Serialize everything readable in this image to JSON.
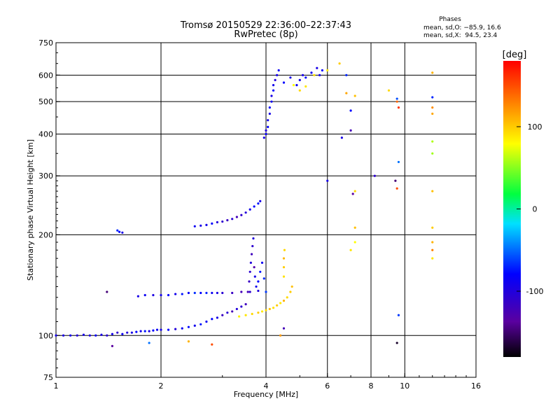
{
  "chart_data": {
    "type": "scatter",
    "title": "Tromsø 20150529 22:36:00–22:37:43",
    "subtitle": "RwPretec (8p)",
    "xlabel": "Frequency [MHz]",
    "ylabel": "Stationary phase Virtual Height [km]",
    "x_scale": "log",
    "y_scale": "log",
    "xlim": [
      1,
      16
    ],
    "ylim": [
      75,
      750
    ],
    "x_ticks": [
      1,
      2,
      4,
      6,
      8,
      10,
      16
    ],
    "y_ticks": [
      75,
      100,
      200,
      300,
      400,
      500,
      600,
      750
    ],
    "grid_x": [
      2,
      4,
      6,
      8,
      10
    ],
    "grid_y": [
      100,
      200,
      300,
      400,
      500,
      600
    ],
    "grid": true,
    "stats": {
      "heading": "Phases",
      "line_o": "mean, sd,O: −85.9, 16.6",
      "line_x": "mean, sd,X:  94.5, 23.4"
    },
    "colorbar": {
      "label": "[deg]",
      "min": -180,
      "max": 180,
      "ticks": [
        100,
        0,
        -100
      ],
      "placement": "right"
    },
    "series": [
      {
        "points": [
          [
            1.0,
            100,
            -110
          ],
          [
            1.05,
            100,
            -112
          ],
          [
            1.1,
            100,
            -108
          ],
          [
            1.15,
            100,
            -115
          ],
          [
            1.2,
            100.5,
            -110
          ],
          [
            1.25,
            100,
            -112
          ],
          [
            1.3,
            100,
            -105
          ],
          [
            1.35,
            100.5,
            -110
          ],
          [
            1.4,
            100,
            -118
          ],
          [
            1.45,
            101,
            -108
          ],
          [
            1.5,
            102,
            -120
          ],
          [
            1.55,
            101,
            -105
          ],
          [
            1.6,
            102,
            -115
          ],
          [
            1.65,
            102,
            -110
          ],
          [
            1.7,
            102.5,
            -100
          ],
          [
            1.75,
            103,
            -108
          ],
          [
            1.8,
            103,
            -95
          ],
          [
            1.85,
            103,
            -112
          ],
          [
            1.9,
            103.5,
            -100
          ],
          [
            1.95,
            104,
            -105
          ],
          [
            2.0,
            104,
            -110
          ],
          [
            2.1,
            104,
            -100
          ],
          [
            2.2,
            104.5,
            -115
          ],
          [
            2.3,
            105,
            -105
          ],
          [
            2.4,
            106,
            -98
          ],
          [
            2.5,
            107,
            -108
          ],
          [
            2.6,
            108,
            -95
          ],
          [
            2.7,
            110,
            -105
          ],
          [
            2.8,
            112,
            -100
          ],
          [
            2.9,
            113,
            -110
          ],
          [
            3.0,
            115,
            -125
          ],
          [
            3.1,
            117,
            -118
          ],
          [
            3.2,
            118,
            -130
          ],
          [
            3.3,
            120,
            -115
          ],
          [
            3.4,
            122,
            -120
          ],
          [
            3.5,
            124,
            -128
          ]
        ]
      },
      {
        "points": [
          [
            1.72,
            131,
            -110
          ],
          [
            1.8,
            132,
            -105
          ],
          [
            1.9,
            132,
            -112
          ],
          [
            2.0,
            132,
            -108
          ],
          [
            2.1,
            132,
            -100
          ],
          [
            2.2,
            133,
            -108
          ],
          [
            2.3,
            133,
            -95
          ],
          [
            2.4,
            134,
            -102
          ],
          [
            2.5,
            134,
            -88
          ],
          [
            2.6,
            134,
            -100
          ],
          [
            2.7,
            134,
            -92
          ],
          [
            2.8,
            134,
            -105
          ],
          [
            2.9,
            134,
            -110
          ],
          [
            3.0,
            134,
            -118
          ],
          [
            3.2,
            134,
            -125
          ],
          [
            3.4,
            135,
            -130
          ],
          [
            3.6,
            135,
            -120
          ],
          [
            3.8,
            136,
            -115
          ]
        ]
      },
      {
        "points": [
          [
            2.5,
            212,
            -105
          ],
          [
            2.6,
            213,
            -110
          ],
          [
            2.7,
            214,
            -108
          ],
          [
            2.8,
            216,
            -100
          ],
          [
            2.9,
            218,
            -115
          ],
          [
            3.0,
            219,
            -120
          ],
          [
            3.1,
            221,
            -125
          ],
          [
            3.2,
            223,
            -118
          ],
          [
            3.3,
            226,
            -130
          ],
          [
            3.4,
            229,
            -120
          ],
          [
            3.5,
            233,
            -115
          ],
          [
            3.6,
            238,
            -108
          ],
          [
            3.7,
            243,
            -100
          ],
          [
            3.8,
            248,
            -95
          ],
          [
            3.85,
            252,
            -110
          ]
        ]
      },
      {
        "points": [
          [
            1.5,
            206,
            -90
          ],
          [
            1.52,
            204,
            -100
          ],
          [
            1.55,
            203,
            -110
          ]
        ]
      },
      {
        "points": [
          [
            3.55,
            135,
            -130
          ],
          [
            3.58,
            145,
            -125
          ],
          [
            3.6,
            155,
            -120
          ],
          [
            3.62,
            165,
            -115
          ],
          [
            3.64,
            175,
            -128
          ],
          [
            3.66,
            185,
            -120
          ],
          [
            3.68,
            195,
            -115
          ],
          [
            3.7,
            160,
            -135
          ],
          [
            3.72,
            150,
            -110
          ],
          [
            3.75,
            140,
            -108
          ],
          [
            3.8,
            145,
            -100
          ],
          [
            3.85,
            155,
            -95
          ],
          [
            3.9,
            165,
            -105
          ],
          [
            3.95,
            148,
            -90
          ],
          [
            4.0,
            135,
            -85
          ]
        ]
      },
      {
        "points": [
          [
            3.35,
            114,
            85
          ],
          [
            3.5,
            115,
            90
          ],
          [
            3.65,
            116,
            95
          ],
          [
            3.8,
            117,
            100
          ],
          [
            3.9,
            118,
            88
          ],
          [
            4.0,
            119,
            95
          ],
          [
            4.1,
            120,
            105
          ],
          [
            4.2,
            121,
            92
          ],
          [
            4.3,
            123,
            100
          ],
          [
            4.4,
            125,
            88
          ],
          [
            4.5,
            127,
            110
          ],
          [
            4.6,
            130,
            95
          ],
          [
            4.7,
            135,
            100
          ],
          [
            4.75,
            140,
            105
          ],
          [
            4.5,
            150,
            92
          ],
          [
            4.5,
            160,
            100
          ],
          [
            4.5,
            170,
            108
          ],
          [
            4.52,
            180,
            95
          ]
        ]
      },
      {
        "points": [
          [
            3.95,
            390,
            -110
          ],
          [
            4.0,
            400,
            -105
          ],
          [
            4.0,
            410,
            -115
          ],
          [
            4.05,
            420,
            -100
          ],
          [
            4.05,
            440,
            -108
          ],
          [
            4.1,
            460,
            -110
          ],
          [
            4.1,
            480,
            -100
          ],
          [
            4.15,
            500,
            -105
          ],
          [
            4.15,
            520,
            -110
          ],
          [
            4.2,
            540,
            -100
          ],
          [
            4.2,
            560,
            -108
          ],
          [
            4.25,
            580,
            -115
          ],
          [
            4.3,
            600,
            -110
          ],
          [
            4.35,
            620,
            -105
          ],
          [
            4.5,
            570,
            -100
          ],
          [
            4.7,
            590,
            -110
          ],
          [
            4.9,
            560,
            -105
          ],
          [
            5.0,
            580,
            -108
          ],
          [
            5.1,
            600,
            -110
          ],
          [
            5.2,
            590,
            -100
          ],
          [
            5.4,
            610,
            -105
          ],
          [
            5.6,
            630,
            -110
          ],
          [
            5.7,
            600,
            -108
          ],
          [
            5.8,
            620,
            -100
          ]
        ]
      },
      {
        "points": [
          [
            4.8,
            560,
            80
          ],
          [
            5.0,
            540,
            95
          ],
          [
            5.2,
            555,
            90
          ],
          [
            5.5,
            600,
            92
          ],
          [
            6.0,
            620,
            88
          ],
          [
            6.5,
            650,
            100
          ],
          [
            6.8,
            530,
            115
          ],
          [
            7.2,
            520,
            105
          ],
          [
            9.0,
            540,
            95
          ],
          [
            9.5,
            500,
            140
          ],
          [
            9.6,
            480,
            160
          ],
          [
            12.0,
            610,
            110
          ],
          [
            12.0,
            480,
            125
          ],
          [
            12.0,
            460,
            115
          ],
          [
            12.0,
            380,
            55
          ],
          [
            12.0,
            350,
            50
          ],
          [
            12.0,
            270,
            105
          ],
          [
            12.0,
            210,
            100
          ],
          [
            12.0,
            190,
            110
          ],
          [
            12.0,
            180,
            130
          ],
          [
            12.0,
            170,
            90
          ],
          [
            7.2,
            270,
            95
          ],
          [
            7.2,
            210,
            105
          ],
          [
            7.2,
            190,
            80
          ],
          [
            7.0,
            180,
            90
          ],
          [
            4.4,
            100,
            120
          ]
        ]
      },
      {
        "points": [
          [
            6.8,
            600,
            -90
          ],
          [
            7.0,
            410,
            -130
          ],
          [
            6.6,
            390,
            -110
          ],
          [
            7.1,
            265,
            -140
          ],
          [
            8.2,
            300,
            -120
          ],
          [
            9.5,
            510,
            -80
          ],
          [
            9.6,
            330,
            -70
          ],
          [
            9.4,
            290,
            -150
          ],
          [
            9.5,
            275,
            150
          ],
          [
            12.0,
            515,
            -90
          ],
          [
            9.6,
            115,
            -85
          ],
          [
            9.5,
            95,
            -170
          ],
          [
            6.0,
            290,
            -110
          ],
          [
            7.0,
            470,
            -100
          ],
          [
            1.4,
            135,
            -150
          ],
          [
            1.45,
            93,
            -140
          ],
          [
            1.85,
            95,
            -70
          ],
          [
            2.4,
            96,
            110
          ],
          [
            2.8,
            94,
            150
          ],
          [
            4.5,
            105,
            -130
          ]
        ]
      }
    ]
  }
}
